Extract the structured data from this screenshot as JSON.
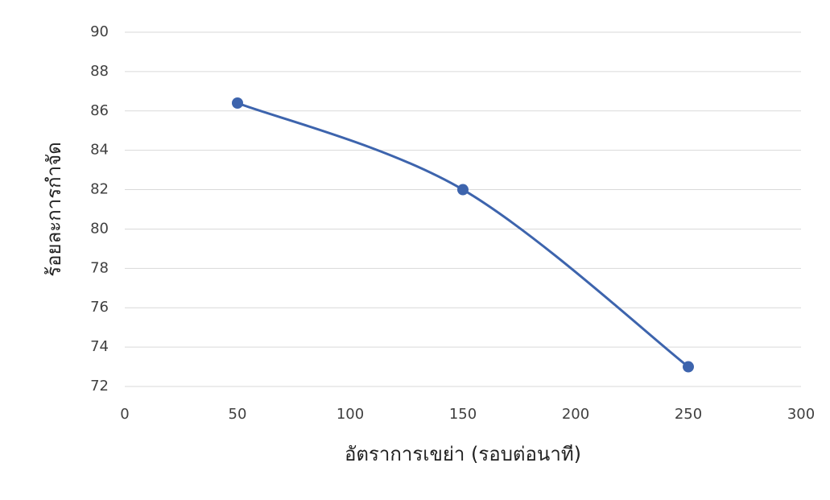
{
  "chart_data": {
    "type": "scatter-smooth",
    "x_label": "อัตราการเขย่า (รอบต่อนาที)",
    "y_label": "ร้อยละการกำจัด",
    "x": [
      50,
      150,
      250
    ],
    "series": [
      {
        "color": "#3d64ad",
        "values": [
          86.4,
          82.0,
          73.0
        ]
      }
    ],
    "xlim": [
      0,
      300
    ],
    "xticks": [
      0,
      50,
      100,
      150,
      200,
      250,
      300
    ],
    "ylim": [
      72,
      90
    ],
    "yticks": [
      72,
      74,
      76,
      78,
      80,
      82,
      84,
      86,
      88,
      90
    ],
    "grid": true
  }
}
